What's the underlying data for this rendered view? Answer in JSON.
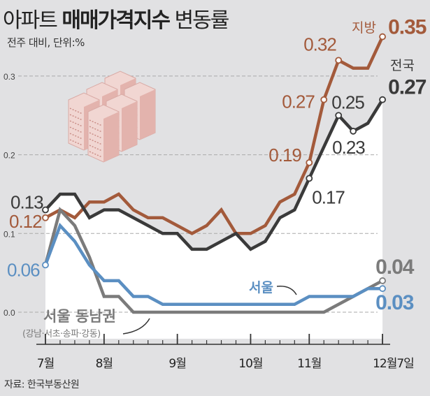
{
  "title": {
    "light": "아파트",
    "bold": "매매가격지수",
    "rest": "변동률"
  },
  "subtitle": "전주 대비, 단위:%",
  "source": "자료: 한국부동산원",
  "chart_data": {
    "type": "line",
    "title": "아파트 매매가격지수 변동률",
    "subtitle": "전주 대비, 단위:%",
    "x_tick_labels": [
      {
        "index": 0,
        "label": "7월"
      },
      {
        "index": 4,
        "label": "8월"
      },
      {
        "index": 9,
        "label": "9월"
      },
      {
        "index": 14,
        "label": "10월"
      },
      {
        "index": 18,
        "label": "11월"
      },
      {
        "index": 23,
        "label": "12월7일"
      }
    ],
    "weeks": 24,
    "ylim": [
      0,
      0.36
    ],
    "y_ticks": [
      {
        "value": 0.0,
        "label": "0.0"
      },
      {
        "value": 0.1,
        "label": "0.1"
      },
      {
        "value": 0.2,
        "label": "0.2"
      },
      {
        "value": 0.3,
        "label": "0.3"
      }
    ],
    "grid": "horizontal dashed",
    "series": [
      {
        "name": "지방",
        "color": "#a35a3b",
        "values": [
          0.12,
          0.13,
          0.12,
          0.14,
          0.14,
          0.15,
          0.13,
          0.12,
          0.12,
          0.11,
          0.1,
          0.11,
          0.13,
          0.1,
          0.1,
          0.11,
          0.14,
          0.15,
          0.19,
          0.27,
          0.32,
          0.31,
          0.31,
          0.35
        ]
      },
      {
        "name": "전국",
        "color": "#3a3a3a",
        "values": [
          0.13,
          0.15,
          0.15,
          0.12,
          0.13,
          0.13,
          0.12,
          0.11,
          0.1,
          0.1,
          0.08,
          0.08,
          0.09,
          0.1,
          0.08,
          0.09,
          0.12,
          0.13,
          0.17,
          0.21,
          0.25,
          0.23,
          0.24,
          0.27
        ]
      },
      {
        "name": "서울 동남권",
        "sub": "(강남·서초·송파·강동)",
        "color": "#7b7b7b",
        "values": [
          0.06,
          0.13,
          0.11,
          0.07,
          0.02,
          0.02,
          0.0,
          0.0,
          0.0,
          0.0,
          0.0,
          0.0,
          0.0,
          0.0,
          0.0,
          0.0,
          0.0,
          0.0,
          0.0,
          0.0,
          0.01,
          0.02,
          0.03,
          0.04
        ]
      },
      {
        "name": "서울",
        "color": "#5b8fc2",
        "values": [
          0.06,
          0.11,
          0.09,
          0.06,
          0.04,
          0.04,
          0.02,
          0.02,
          0.01,
          0.01,
          0.01,
          0.01,
          0.01,
          0.01,
          0.01,
          0.01,
          0.01,
          0.01,
          0.02,
          0.02,
          0.02,
          0.02,
          0.03,
          0.03
        ]
      }
    ],
    "data_labels": [
      {
        "series": 1,
        "index": 0,
        "text": "0.13"
      },
      {
        "series": 0,
        "index": 0,
        "text": "0.12"
      },
      {
        "series": 3,
        "index": 0,
        "text": "0.06"
      },
      {
        "series": 0,
        "index": 18,
        "text": "0.19"
      },
      {
        "series": 0,
        "index": 19,
        "text": "0.27"
      },
      {
        "series": 0,
        "index": 20,
        "text": "0.32"
      },
      {
        "series": 0,
        "index": 23,
        "text": "0.35"
      },
      {
        "series": 1,
        "index": 18,
        "text": "0.17"
      },
      {
        "series": 1,
        "index": 20,
        "text": "0.25"
      },
      {
        "series": 1,
        "index": 21,
        "text": "0.23"
      },
      {
        "series": 1,
        "index": 23,
        "text": "0.27"
      },
      {
        "series": 2,
        "index": 23,
        "text": "0.04"
      },
      {
        "series": 3,
        "index": 23,
        "text": "0.03"
      }
    ]
  }
}
